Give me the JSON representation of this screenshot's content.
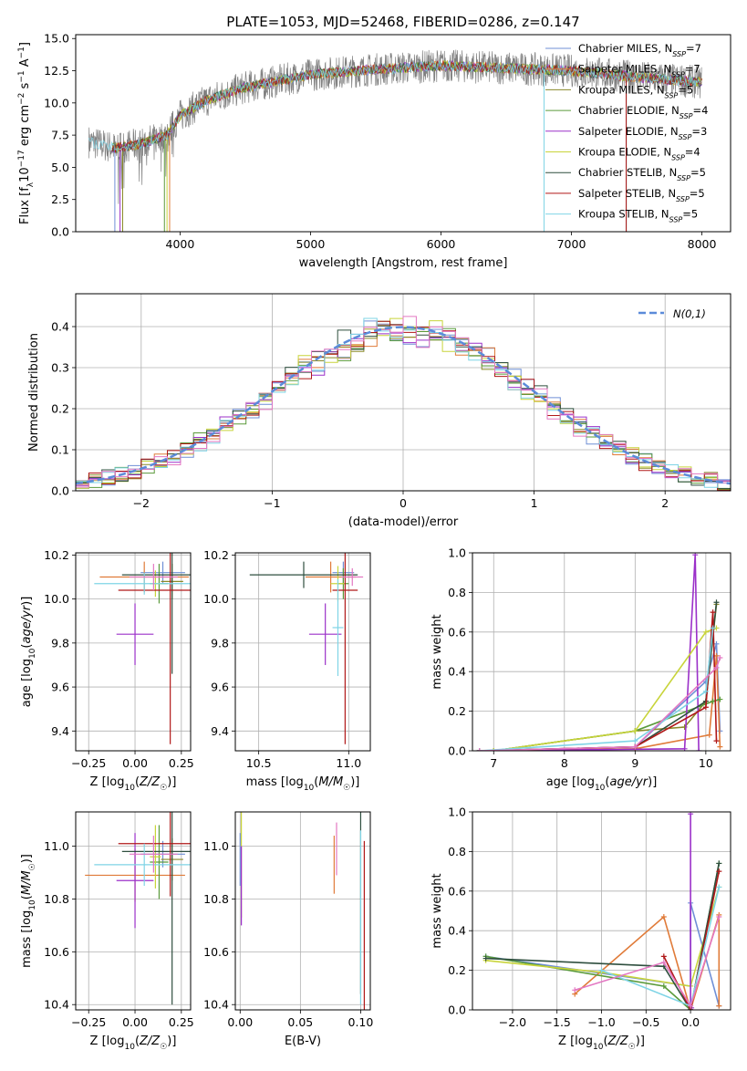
{
  "chart_data": [
    {
      "id": "spectrum",
      "type": "line",
      "title": "PLATE=1053, MJD=52468, FIBERID=0286, z=0.147",
      "xlabel": "wavelength [Angstrom, rest frame]",
      "ylabel": "Flux [f_λ 10^-17 erg cm^-2 s^-1 A^-1]",
      "xlim": [
        3200,
        8220
      ],
      "ylim": [
        0,
        15.3
      ],
      "xticks": [
        4000,
        5000,
        6000,
        7000,
        8000
      ],
      "yticks": [
        0.0,
        2.5,
        5.0,
        7.5,
        10.0,
        12.5,
        15.0
      ],
      "grid": false,
      "legend_position": "upper right",
      "data_series": {
        "name": "data",
        "color": "#808080",
        "x_range": [
          3300,
          8000
        ],
        "approx_continuum": [
          [
            3300,
            7.0
          ],
          [
            3500,
            6.5
          ],
          [
            3700,
            6.8
          ],
          [
            3900,
            7.5
          ],
          [
            4000,
            9.0
          ],
          [
            4200,
            10.2
          ],
          [
            4500,
            11.2
          ],
          [
            5000,
            12.2
          ],
          [
            5500,
            12.6
          ],
          [
            6000,
            12.9
          ],
          [
            6500,
            12.7
          ],
          [
            7000,
            12.5
          ],
          [
            7500,
            12.0
          ],
          [
            8000,
            11.6
          ]
        ]
      },
      "model_series": [
        {
          "name": "Chabrier MILES",
          "nssp": "7",
          "color": "#6f8fd6"
        },
        {
          "name": "Salpeter MILES",
          "nssp": "7",
          "color": "#e07b39"
        },
        {
          "name": "Kroupa MILES",
          "nssp": "5",
          "color": "#8a8a2a"
        },
        {
          "name": "Chabrier ELODIE",
          "nssp": "4",
          "color": "#5a9a3a"
        },
        {
          "name": "Salpeter ELODIE",
          "nssp": "3",
          "color": "#9b30c9"
        },
        {
          "name": "Kroupa ELODIE",
          "nssp": "4",
          "color": "#c8d43a"
        },
        {
          "name": "Chabrier STELIB",
          "nssp": "5",
          "color": "#2f4f3f"
        },
        {
          "name": "Salpeter STELIB",
          "nssp": "5",
          "color": "#b01818"
        },
        {
          "name": "Kroupa STELIB",
          "nssp": "5",
          "color": "#7fd4e6"
        }
      ]
    },
    {
      "id": "residuals",
      "type": "line",
      "xlabel": "(data-model)/error",
      "ylabel": "Normed distribution",
      "xlim": [
        -2.5,
        2.5
      ],
      "ylim": [
        0,
        0.48
      ],
      "xticks": [
        -2,
        -1,
        0,
        1,
        2
      ],
      "yticks": [
        0.0,
        0.1,
        0.2,
        0.3,
        0.4
      ],
      "grid": true,
      "legend_position": "upper right",
      "legend_label": "N(0,1)",
      "gaussian": {
        "mean": 0,
        "sigma": 1,
        "color": "#5b8bd9"
      },
      "histogram_bin_width": 0.1
    },
    {
      "id": "age-vs-z",
      "type": "scatter",
      "xlabel": "Z [log10(Z/Z☉)]",
      "ylabel": "age [log10(age/yr)]",
      "xlim": [
        -0.32,
        0.3
      ],
      "ylim": [
        9.31,
        10.21
      ],
      "xticks": [
        -0.25,
        0.0,
        0.25
      ],
      "xtick_labels": [
        "−0.25",
        "0.00",
        "0.25"
      ],
      "yticks": [
        9.4,
        9.6,
        9.8,
        10.0,
        10.2
      ],
      "grid": true,
      "points": [
        {
          "x": 0.15,
          "y": 10.12,
          "xerr": 0.12,
          "yerr": 0.05,
          "color": "#6f8fd6"
        },
        {
          "x": 0.05,
          "y": 10.1,
          "xerr": 0.24,
          "yerr": 0.07,
          "color": "#e07b39"
        },
        {
          "x": 0.2,
          "y": 10.08,
          "xerr": 0.06,
          "yerr": 0.08,
          "color": "#8a8a2a"
        },
        {
          "x": 0.13,
          "y": 10.07,
          "xerr": 0.05,
          "yerr": 0.09,
          "color": "#5a9a3a"
        },
        {
          "x": 0.0,
          "y": 9.84,
          "xerr": 0.1,
          "yerr": 0.14,
          "color": "#9b30c9"
        },
        {
          "x": 0.11,
          "y": 10.07,
          "xerr": 0.03,
          "yerr": 0.06,
          "color": "#c8d43a"
        },
        {
          "x": 0.2,
          "y": 10.11,
          "xerr": 0.27,
          "yerr": 0.45,
          "color": "#2f4f3f"
        },
        {
          "x": 0.19,
          "y": 10.04,
          "xerr": 0.28,
          "yerr": 0.7,
          "color": "#b01818"
        },
        {
          "x": 0.05,
          "y": 10.07,
          "xerr": 0.27,
          "yerr": 0.05,
          "color": "#7fd4e6"
        },
        {
          "x": 0.1,
          "y": 10.1,
          "xerr": 0.13,
          "yerr": 0.06,
          "color": "#e377c2"
        }
      ]
    },
    {
      "id": "age-vs-mass",
      "type": "scatter",
      "xlabel": "mass [log10(M/M☉)]",
      "ylabel": "",
      "xlim": [
        10.37,
        11.12
      ],
      "ylim": [
        9.31,
        10.21
      ],
      "xticks": [
        10.5,
        11.0
      ],
      "yticks": [
        9.4,
        9.6,
        9.8,
        10.0,
        10.2
      ],
      "grid": true,
      "points": [
        {
          "x": 10.97,
          "y": 10.12,
          "xerr": 0.06,
          "yerr": 0.05,
          "color": "#6f8fd6"
        },
        {
          "x": 10.9,
          "y": 10.1,
          "xerr": 0.14,
          "yerr": 0.07,
          "color": "#e07b39"
        },
        {
          "x": 10.97,
          "y": 10.07,
          "xerr": 0.03,
          "yerr": 0.07,
          "color": "#5a9a3a"
        },
        {
          "x": 10.87,
          "y": 9.84,
          "xerr": 0.09,
          "yerr": 0.14,
          "color": "#9b30c9"
        },
        {
          "x": 10.94,
          "y": 10.07,
          "xerr": 0.04,
          "yerr": 0.08,
          "color": "#c8d43a"
        },
        {
          "x": 10.75,
          "y": 10.11,
          "xerr": 0.3,
          "yerr": 0.06,
          "color": "#2f4f3f"
        },
        {
          "x": 10.98,
          "y": 10.04,
          "xerr": 0.07,
          "yerr": 0.7,
          "color": "#b01818"
        },
        {
          "x": 10.94,
          "y": 9.87,
          "xerr": 0.03,
          "yerr": 0.22,
          "color": "#7fd4e6"
        },
        {
          "x": 11.02,
          "y": 10.1,
          "xerr": 0.06,
          "yerr": 0.04,
          "color": "#e377c2"
        }
      ]
    },
    {
      "id": "mass-weight-vs-age",
      "type": "line",
      "xlabel": "age [log10(age/yr)]",
      "ylabel": "mass weight",
      "xlim": [
        6.7,
        10.35
      ],
      "ylim": [
        0,
        1.0
      ],
      "xticks": [
        7,
        8,
        9,
        10
      ],
      "yticks": [
        0.0,
        0.2,
        0.4,
        0.6,
        0.8,
        1.0
      ],
      "grid": true,
      "series": [
        {
          "color": "#6f8fd6",
          "x": [
            6.8,
            9.0,
            10.0,
            10.15,
            10.2
          ],
          "y": [
            0.0,
            0.02,
            0.35,
            0.54,
            0.1
          ]
        },
        {
          "color": "#e07b39",
          "x": [
            6.8,
            9.0,
            10.05,
            10.15,
            10.2
          ],
          "y": [
            0.0,
            0.01,
            0.08,
            0.48,
            0.02
          ]
        },
        {
          "color": "#8a8a2a",
          "x": [
            7.0,
            9.0,
            9.7,
            10.0,
            10.15
          ],
          "y": [
            0.0,
            0.1,
            0.12,
            0.25,
            0.74
          ]
        },
        {
          "color": "#5a9a3a",
          "x": [
            7.0,
            9.0,
            10.1,
            10.2
          ],
          "y": [
            0.0,
            0.1,
            0.25,
            0.26
          ]
        },
        {
          "color": "#9b30c9",
          "x": [
            6.8,
            9.7,
            9.85,
            9.9
          ],
          "y": [
            0.0,
            0.01,
            0.99,
            0.0
          ]
        },
        {
          "color": "#c8d43a",
          "x": [
            7.0,
            9.0,
            10.0,
            10.15
          ],
          "y": [
            0.0,
            0.1,
            0.6,
            0.62
          ]
        },
        {
          "color": "#2f4f3f",
          "x": [
            6.8,
            9.0,
            10.0,
            10.15
          ],
          "y": [
            0.0,
            0.02,
            0.25,
            0.75
          ]
        },
        {
          "color": "#b01818",
          "x": [
            6.8,
            9.0,
            10.0,
            10.1,
            10.15
          ],
          "y": [
            0.0,
            0.02,
            0.22,
            0.7,
            0.05
          ]
        },
        {
          "color": "#7fd4e6",
          "x": [
            6.8,
            9.0,
            10.0,
            10.1
          ],
          "y": [
            0.0,
            0.05,
            0.3,
            0.62
          ]
        },
        {
          "color": "#e377c2",
          "x": [
            6.8,
            9.0,
            10.15,
            10.2
          ],
          "y": [
            0.0,
            0.02,
            0.42,
            0.47
          ]
        }
      ]
    },
    {
      "id": "mass-vs-z",
      "type": "scatter",
      "xlabel": "Z [log10(Z/Z☉)]",
      "ylabel": "mass [log10(M/M☉)]",
      "xlim": [
        -0.32,
        0.3
      ],
      "ylim": [
        10.38,
        11.13
      ],
      "xticks": [
        -0.25,
        0.0,
        0.25
      ],
      "xtick_labels": [
        "−0.25",
        "0.00",
        "0.25"
      ],
      "yticks": [
        10.4,
        10.6,
        10.8,
        11.0
      ],
      "grid": true,
      "points": [
        {
          "x": 0.15,
          "y": 10.97,
          "xerr": 0.12,
          "yerr": 0.05,
          "color": "#6f8fd6"
        },
        {
          "x": 0.0,
          "y": 10.89,
          "xerr": 0.27,
          "yerr": 0.1,
          "color": "#e07b39"
        },
        {
          "x": 0.2,
          "y": 10.95,
          "xerr": 0.06,
          "yerr": 0.08,
          "color": "#8a8a2a"
        },
        {
          "x": 0.13,
          "y": 10.94,
          "xerr": 0.05,
          "yerr": 0.14,
          "color": "#5a9a3a"
        },
        {
          "x": 0.0,
          "y": 10.87,
          "xerr": 0.1,
          "yerr": 0.18,
          "color": "#9b30c9"
        },
        {
          "x": 0.11,
          "y": 10.96,
          "xerr": 0.03,
          "yerr": 0.12,
          "color": "#c8d43a"
        },
        {
          "x": 0.2,
          "y": 10.98,
          "xerr": 0.27,
          "yerr": 0.58,
          "color": "#2f4f3f"
        },
        {
          "x": 0.19,
          "y": 11.01,
          "xerr": 0.28,
          "yerr": 0.2,
          "color": "#b01818"
        },
        {
          "x": 0.05,
          "y": 10.93,
          "xerr": 0.27,
          "yerr": 0.08,
          "color": "#7fd4e6"
        },
        {
          "x": 0.1,
          "y": 10.97,
          "xerr": 0.13,
          "yerr": 0.07,
          "color": "#e377c2"
        }
      ]
    },
    {
      "id": "mass-vs-ebv",
      "type": "scatter",
      "xlabel": "E(B-V)",
      "ylabel": "",
      "xlim": [
        -0.004,
        0.108
      ],
      "ylim": [
        10.38,
        11.13
      ],
      "xticks": [
        0.0,
        0.05,
        0.1
      ],
      "xtick_labels": [
        "0.00",
        "0.05",
        "0.10"
      ],
      "yticks": [
        10.4,
        10.6,
        10.8,
        11.0
      ],
      "grid": true,
      "points": [
        {
          "x": 0.0,
          "y": 10.95,
          "xerr": 0.0,
          "yerr": 0.1,
          "color": "#6f8fd6"
        },
        {
          "x": 0.078,
          "y": 10.93,
          "xerr": 0.0,
          "yerr": 0.11,
          "color": "#e07b39"
        },
        {
          "x": 0.001,
          "y": 10.93,
          "xerr": 0.0,
          "yerr": 0.2,
          "color": "#c8d43a"
        },
        {
          "x": 0.001,
          "y": 10.85,
          "xerr": 0.0,
          "yerr": 0.15,
          "color": "#9b30c9"
        },
        {
          "x": 0.1,
          "y": 10.8,
          "xerr": 0.0,
          "yerr": 0.36,
          "color": "#2f4f3f"
        },
        {
          "x": 0.103,
          "y": 10.7,
          "xerr": 0.0,
          "yerr": 0.32,
          "color": "#b01818"
        },
        {
          "x": 0.1,
          "y": 10.73,
          "xerr": 0.0,
          "yerr": 0.33,
          "color": "#7fd4e6"
        },
        {
          "x": 0.08,
          "y": 10.99,
          "xerr": 0.0,
          "yerr": 0.1,
          "color": "#e377c2"
        }
      ]
    },
    {
      "id": "mass-weight-vs-z",
      "type": "line",
      "xlabel": "Z [log10(Z/Z☉)]",
      "ylabel": "mass weight",
      "xlim": [
        -2.45,
        0.45
      ],
      "ylim": [
        0,
        1.0
      ],
      "xticks": [
        -2.0,
        -1.5,
        -1.0,
        -0.5,
        0.0
      ],
      "xtick_labels": [
        "−2.0",
        "−1.5",
        "−1.0",
        "−0.5",
        "0.0"
      ],
      "yticks": [
        0.0,
        0.2,
        0.4,
        0.6,
        0.8,
        1.0
      ],
      "grid": true,
      "series": [
        {
          "color": "#6f8fd6",
          "x": [
            -2.3,
            0.0,
            0.0,
            0.32
          ],
          "y": [
            0.27,
            0.12,
            0.54,
            0.02
          ]
        },
        {
          "color": "#e07b39",
          "x": [
            -1.3,
            -0.3,
            0.0,
            0.32,
            0.32
          ],
          "y": [
            0.08,
            0.47,
            0.0,
            0.48,
            0.02
          ]
        },
        {
          "color": "#5a9a3a",
          "x": [
            -2.3,
            -0.3,
            0.0,
            0.32
          ],
          "y": [
            0.27,
            0.12,
            0.0,
            0.74
          ]
        },
        {
          "color": "#c8d43a",
          "x": [
            -2.3,
            -1.0,
            0.0,
            0.32
          ],
          "y": [
            0.25,
            0.19,
            0.12,
            0.62
          ]
        },
        {
          "color": "#9b30c9",
          "x": [
            0.0,
            0.0,
            0.01
          ],
          "y": [
            0.99,
            0.0,
            0.01
          ]
        },
        {
          "color": "#2f4f3f",
          "x": [
            -2.3,
            -0.3,
            0.0,
            0.32
          ],
          "y": [
            0.26,
            0.22,
            0.0,
            0.74
          ]
        },
        {
          "color": "#b01818",
          "x": [
            -0.3,
            0.0,
            0.32
          ],
          "y": [
            0.27,
            0.0,
            0.7
          ]
        },
        {
          "color": "#7fd4e6",
          "x": [
            -1.0,
            0.0,
            0.32
          ],
          "y": [
            0.2,
            0.02,
            0.62
          ]
        },
        {
          "color": "#e377c2",
          "x": [
            -1.3,
            -0.3,
            0.0,
            0.32
          ],
          "y": [
            0.1,
            0.24,
            0.02,
            0.47
          ]
        }
      ]
    }
  ]
}
